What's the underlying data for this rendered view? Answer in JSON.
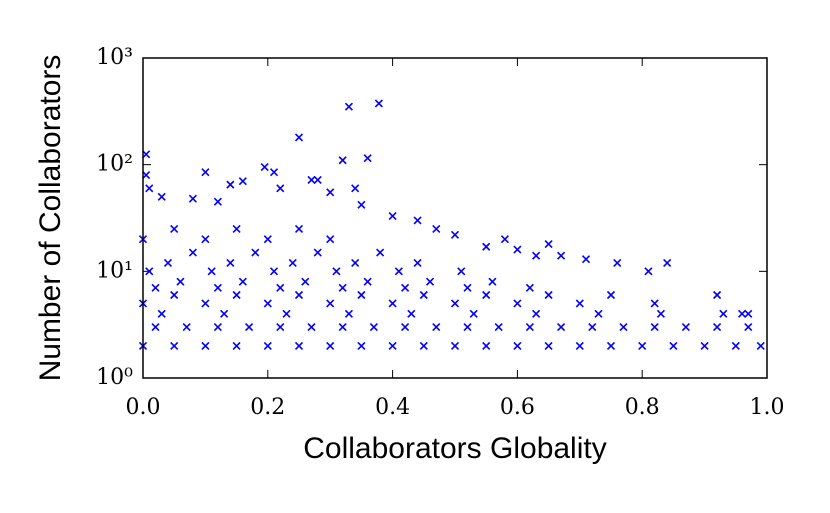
{
  "chart_data": {
    "type": "scatter",
    "x_label": "Collaborators Globality",
    "y_label": "Number of Collaborators",
    "color": "#0000ff",
    "y_log": true,
    "xlim": [
      0,
      1
    ],
    "ylim": [
      1,
      1000
    ],
    "xticks": [
      {
        "value": 0,
        "label": "0.0"
      },
      0.2,
      0.4,
      0.6,
      0.8,
      {
        "value": 1,
        "label": "1.0"
      }
    ],
    "yticks": [
      {
        "value": 1,
        "label": "10⁰"
      },
      {
        "value": 10,
        "label": "10¹"
      },
      {
        "value": 100,
        "label": "10²"
      },
      {
        "value": 1000,
        "label": "10³"
      }
    ],
    "x": [
      0.0,
      0.05,
      0.1,
      0.15,
      0.2,
      0.25,
      0.3,
      0.35,
      0.4,
      0.45,
      0.5,
      0.55,
      0.6,
      0.65,
      0.7,
      0.75,
      0.8,
      0.85,
      0.9,
      0.95,
      0.99,
      0.02,
      0.07,
      0.12,
      0.17,
      0.22,
      0.27,
      0.32,
      0.37,
      0.42,
      0.47,
      0.52,
      0.57,
      0.62,
      0.67,
      0.72,
      0.77,
      0.82,
      0.87,
      0.92,
      0.97,
      0.03,
      0.13,
      0.23,
      0.33,
      0.43,
      0.53,
      0.63,
      0.73,
      0.83,
      0.93,
      0.96,
      0.0,
      0.1,
      0.2,
      0.3,
      0.4,
      0.5,
      0.6,
      0.7,
      0.82,
      0.05,
      0.15,
      0.25,
      0.35,
      0.45,
      0.55,
      0.65,
      0.75,
      0.02,
      0.12,
      0.22,
      0.32,
      0.42,
      0.52,
      0.62,
      0.06,
      0.16,
      0.26,
      0.36,
      0.46,
      0.56,
      0.01,
      0.11,
      0.21,
      0.31,
      0.41,
      0.51,
      0.04,
      0.14,
      0.24,
      0.34,
      0.44,
      0.08,
      0.18,
      0.28,
      0.38,
      0.0,
      0.1,
      0.2,
      0.3,
      0.05,
      0.15,
      0.25,
      0.33,
      0.378,
      0.25,
      0.32,
      0.36,
      0.005,
      0.1,
      0.195,
      0.21,
      0.14,
      0.16,
      0.27,
      0.28,
      0.34,
      0.005,
      0.01,
      0.03,
      0.08,
      0.12,
      0.22,
      0.3,
      0.35,
      0.4,
      0.44,
      0.47,
      0.5,
      0.55,
      0.58,
      0.6,
      0.63,
      0.65,
      0.67,
      0.71,
      0.76,
      0.81,
      0.84,
      0.92,
      0.97
    ],
    "values": [
      2,
      2,
      2,
      2,
      2,
      2,
      2,
      2,
      2,
      2,
      2,
      2,
      2,
      2,
      2,
      2,
      2,
      2,
      2,
      2,
      2,
      3,
      3,
      3,
      3,
      3,
      3,
      3,
      3,
      3,
      3,
      3,
      3,
      3,
      3,
      3,
      3,
      3,
      3,
      3,
      3,
      4,
      4,
      4,
      4,
      4,
      4,
      4,
      4,
      4,
      4,
      4,
      5,
      5,
      5,
      5,
      5,
      5,
      5,
      5,
      5,
      6,
      6,
      6,
      6,
      6,
      6,
      6,
      6,
      7,
      7,
      7,
      7,
      7,
      7,
      7,
      8,
      8,
      8,
      8,
      8,
      8,
      10,
      10,
      10,
      10,
      10,
      10,
      12,
      12,
      12,
      12,
      12,
      15,
      15,
      15,
      15,
      20,
      20,
      20,
      20,
      25,
      25,
      25,
      350,
      375,
      180,
      110,
      115,
      125,
      85,
      95,
      85,
      65,
      70,
      72,
      72,
      60,
      80,
      60,
      50,
      48,
      45,
      60,
      55,
      42,
      33,
      30,
      25,
      22,
      17,
      20,
      16,
      14,
      18,
      14,
      13,
      12,
      10,
      12,
      6,
      4
    ]
  }
}
